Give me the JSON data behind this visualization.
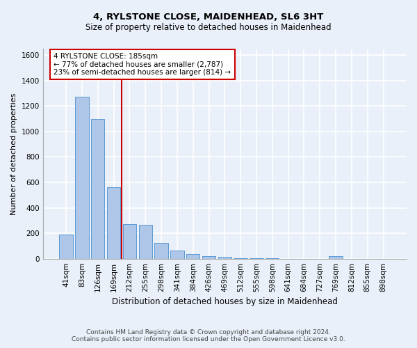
{
  "title1": "4, RYLSTONE CLOSE, MAIDENHEAD, SL6 3HT",
  "title2": "Size of property relative to detached houses in Maidenhead",
  "xlabel": "Distribution of detached houses by size in Maidenhead",
  "ylabel": "Number of detached properties",
  "footer1": "Contains HM Land Registry data © Crown copyright and database right 2024.",
  "footer2": "Contains public sector information licensed under the Open Government Licence v3.0.",
  "bar_labels": [
    "41sqm",
    "83sqm",
    "126sqm",
    "169sqm",
    "212sqm",
    "255sqm",
    "298sqm",
    "341sqm",
    "384sqm",
    "426sqm",
    "469sqm",
    "512sqm",
    "555sqm",
    "598sqm",
    "641sqm",
    "684sqm",
    "727sqm",
    "769sqm",
    "812sqm",
    "855sqm",
    "898sqm"
  ],
  "bar_values": [
    190,
    1270,
    1100,
    560,
    270,
    265,
    125,
    65,
    35,
    20,
    15,
    5,
    3,
    2,
    0,
    0,
    0,
    20,
    0,
    0,
    0
  ],
  "bar_color": "#aec6e8",
  "bar_edge_color": "#5b9bd5",
  "background_color": "#eaf0f9",
  "grid_color": "#ffffff",
  "vline_x": 3.5,
  "vline_color": "#cc0000",
  "annotation_line1": "4 RYLSTONE CLOSE: 185sqm",
  "annotation_line2": "← 77% of detached houses are smaller (2,787)",
  "annotation_line3": "23% of semi-detached houses are larger (814) →",
  "annotation_box_color": "#cc0000",
  "ylim": [
    0,
    1650
  ],
  "yticks": [
    0,
    200,
    400,
    600,
    800,
    1000,
    1200,
    1400,
    1600
  ],
  "title1_fontsize": 9.5,
  "title2_fontsize": 8.5,
  "ylabel_fontsize": 8,
  "xlabel_fontsize": 8.5,
  "tick_fontsize": 7.5,
  "footer_fontsize": 6.5,
  "annotation_fontsize": 7.5
}
